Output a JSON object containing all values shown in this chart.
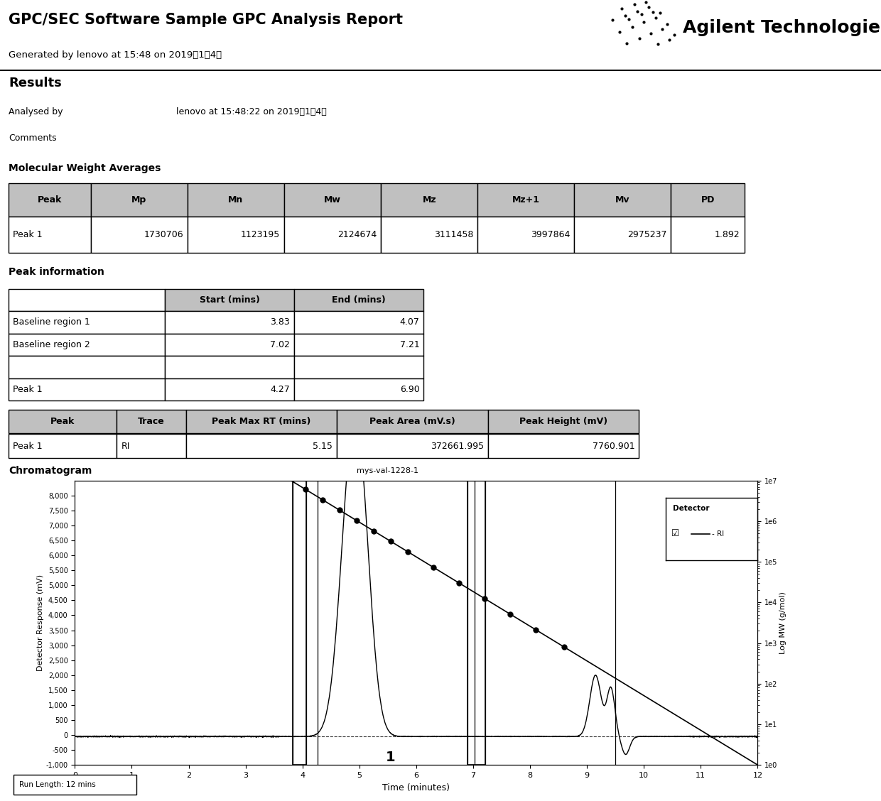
{
  "title": "GPC/SEC Software Sample GPC Analysis Report",
  "subtitle": "Generated by lenovo at 15:48 on 2019年1月4日",
  "logo_text": "Agilent Technologies",
  "results_label": "Results",
  "analysed_by": "lenovo at 15:48:22 on 2019年1月4日",
  "comments": "",
  "mw_table_headers": [
    "Peak",
    "Mp",
    "Mn",
    "Mw",
    "Mz",
    "Mz+1",
    "Mv",
    "PD"
  ],
  "mw_table_data": [
    [
      "Peak 1",
      "1730706",
      "1123195",
      "2124674",
      "3111458",
      "3997864",
      "2975237",
      "1.892"
    ]
  ],
  "peak_info_headers1": [
    "",
    "Start (mins)",
    "End (mins)"
  ],
  "peak_info_data1": [
    [
      "Baseline region 1",
      "3.83",
      "4.07"
    ],
    [
      "Baseline region 2",
      "7.02",
      "7.21"
    ],
    [
      "",
      "",
      ""
    ],
    [
      "Peak 1",
      "4.27",
      "6.90"
    ]
  ],
  "peak_info_headers2": [
    "Peak",
    "Trace",
    "Peak Max RT (mins)",
    "Peak Area (mV.s)",
    "Peak Height (mV)"
  ],
  "peak_info_data2": [
    [
      "Peak 1",
      "RI",
      "5.15",
      "372661.995",
      "7760.901"
    ]
  ],
  "chromatogram_label": "Chromatogram",
  "chromatogram_title": "mys-val-1228-1",
  "run_length": "Run Length: 12 mins",
  "legend_detector": "Detector",
  "legend_ri": "- RI",
  "xlabel": "Time (minutes)",
  "ylabel_left": "Detector Response (mV)",
  "ylabel_right": "Log MW (g/mol)",
  "background_color": "#ffffff",
  "yticks_left": [
    -1000,
    -500,
    0,
    500,
    1000,
    1500,
    2000,
    2500,
    3000,
    3500,
    4000,
    4500,
    5000,
    5500,
    6000,
    6500,
    7000,
    7500,
    8000
  ],
  "ytick_labels_left": [
    "-1,000",
    "-500",
    "0",
    "500",
    "1,000",
    "1,500",
    "2,000",
    "2,500",
    "3,000",
    "3,500",
    "4,000",
    "4,500",
    "5,000",
    "5,500",
    "6,000",
    "6,500",
    "7,000",
    "7,500",
    "8,000"
  ],
  "yticks_right_labels": [
    "1e0",
    "1e1",
    "1e2",
    "1e3",
    "1e4",
    "1e5",
    "1e6",
    "1e7"
  ]
}
